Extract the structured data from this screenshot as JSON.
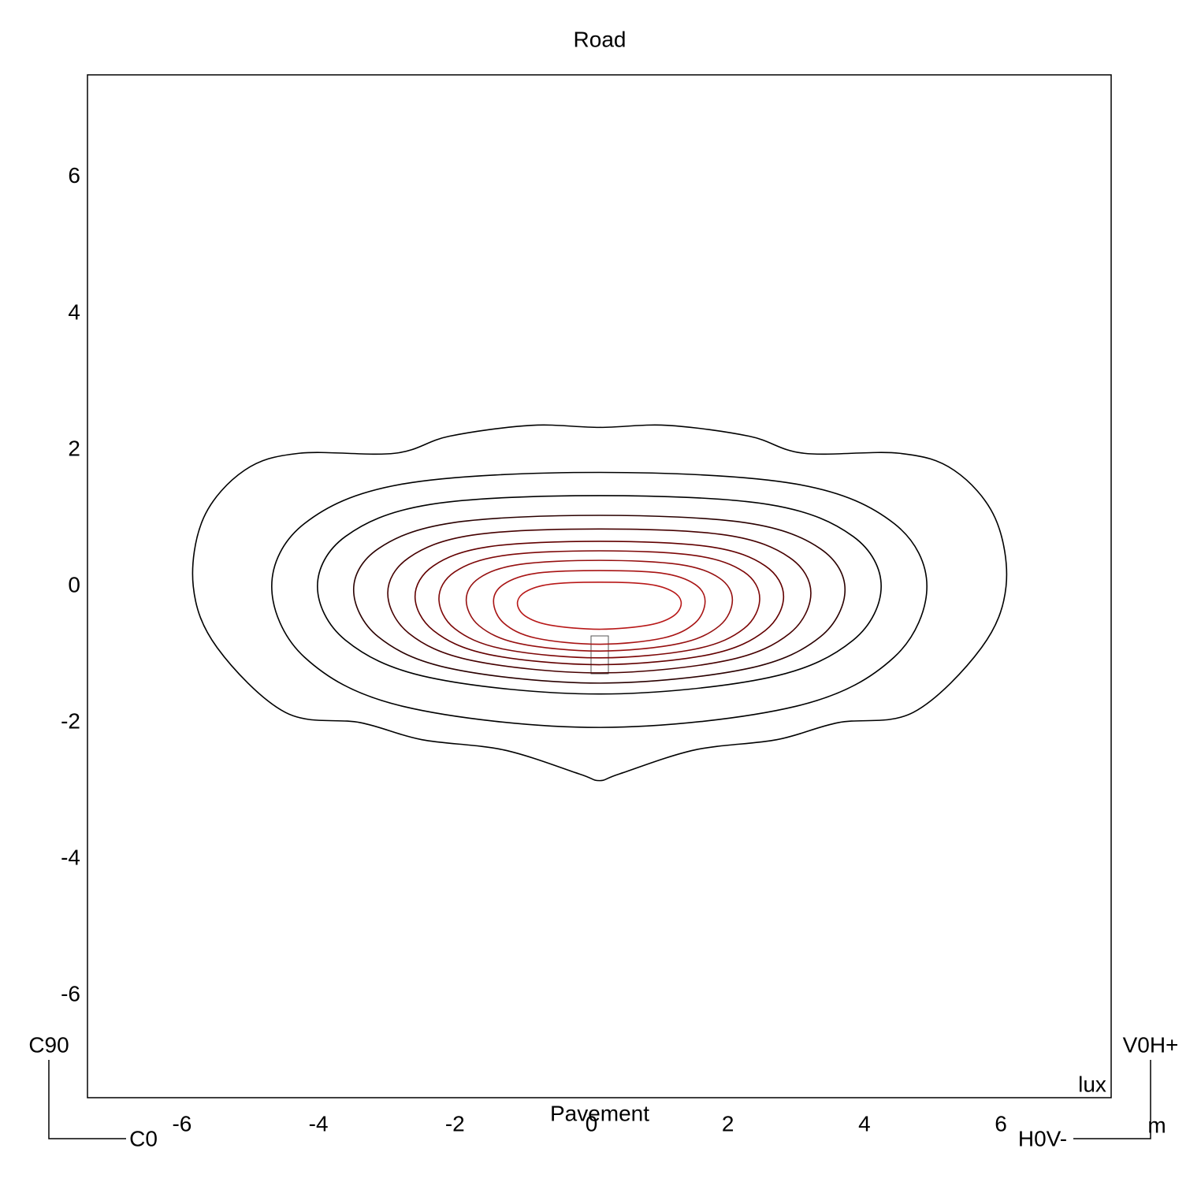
{
  "chart_data": {
    "type": "contour",
    "title": "Road",
    "annotations": [
      "Pavement",
      "lux",
      "m",
      "C90",
      "C0",
      "V0H+",
      "H0V-"
    ],
    "xlim": [
      -7.5,
      7.5
    ],
    "ylim": [
      -7.5,
      7.5
    ],
    "xticks": [
      -6,
      -4,
      -2,
      0,
      2,
      4,
      6
    ],
    "yticks": [
      -6,
      -4,
      -2,
      0,
      2,
      4,
      6
    ],
    "grid": false,
    "series": [
      {
        "color": "#000000",
        "x": [
          -5.95,
          -5.8,
          -5.2,
          -4.4,
          -3.0,
          -2.2,
          -1.0,
          0,
          1.0,
          2.2,
          3.0,
          4.4,
          5.2,
          5.8,
          5.96,
          5.6,
          4.6,
          3.5,
          2.6,
          1.4,
          0.3,
          0,
          -0.3,
          -1.4,
          -2.6,
          -3.5,
          -4.6,
          -5.6
        ],
        "values": [
          0,
          1.0,
          1.7,
          1.95,
          1.95,
          2.2,
          2.36,
          2.33,
          2.36,
          2.2,
          1.95,
          1.95,
          1.7,
          1.0,
          0,
          -0.9,
          -1.85,
          -2.0,
          -2.25,
          -2.4,
          -2.75,
          -2.85,
          -2.75,
          -2.4,
          -2.25,
          -2.0,
          -1.85,
          -0.9
        ]
      },
      {
        "color": "#000000",
        "x": [
          -4.8,
          -4.32,
          -2.88,
          0,
          2.88,
          4.32,
          4.8,
          4.32,
          2.88,
          0,
          -2.88,
          -4.32
        ],
        "values": [
          0,
          0.92,
          1.5,
          1.67,
          1.5,
          0.92,
          0,
          -1.04,
          -1.76,
          -2.07,
          -1.76,
          -1.04
        ]
      },
      {
        "color": "#000000",
        "x": [
          -4.13,
          -3.72,
          -2.48,
          0,
          2.48,
          3.72,
          4.13,
          3.72,
          2.48,
          0,
          -2.48,
          -3.72
        ],
        "values": [
          0,
          0.73,
          1.2,
          1.33,
          1.2,
          0.73,
          0,
          -0.79,
          -1.34,
          -1.58,
          -1.34,
          -0.79
        ]
      },
      {
        "color": "#2a0000",
        "x": [
          -3.6,
          -3.24,
          -2.16,
          0,
          2.16,
          3.24,
          3.6,
          3.24,
          2.16,
          0,
          -2.16,
          -3.24
        ],
        "values": [
          -0.05,
          0.55,
          0.93,
          1.04,
          0.93,
          0.55,
          -0.05,
          -0.74,
          -1.21,
          -1.42,
          -1.21,
          -0.74
        ]
      },
      {
        "color": "#460000",
        "x": [
          -3.1,
          -2.79,
          -1.86,
          0,
          1.86,
          2.79,
          3.1,
          2.79,
          1.86,
          0,
          -1.86,
          -2.79
        ],
        "values": [
          -0.1,
          0.42,
          0.75,
          0.84,
          0.75,
          0.42,
          -0.1,
          -0.69,
          -1.09,
          -1.27,
          -1.09,
          -0.69
        ]
      },
      {
        "color": "#620000",
        "x": [
          -2.7,
          -2.43,
          -1.62,
          0,
          1.62,
          2.43,
          2.7,
          2.43,
          1.62,
          0,
          -1.62,
          -2.43
        ],
        "values": [
          -0.15,
          0.3,
          0.58,
          0.66,
          0.58,
          0.3,
          -0.15,
          -0.65,
          -1.0,
          -1.15,
          -1.0,
          -0.65
        ]
      },
      {
        "color": "#7e0808",
        "x": [
          -2.35,
          -2.12,
          -1.41,
          0,
          1.41,
          2.12,
          2.35,
          2.12,
          1.41,
          0,
          -1.41,
          -2.12
        ],
        "values": [
          -0.18,
          0.21,
          0.45,
          0.52,
          0.45,
          0.21,
          -0.18,
          -0.62,
          -0.92,
          -1.05,
          -0.92,
          -0.62
        ]
      },
      {
        "color": "#961010",
        "x": [
          -1.95,
          -1.76,
          -1.17,
          0,
          1.17,
          1.76,
          1.95,
          1.76,
          1.17,
          0,
          -1.17,
          -1.76
        ],
        "values": [
          -0.2,
          0.12,
          0.32,
          0.38,
          0.32,
          0.12,
          -0.2,
          -0.58,
          -0.84,
          -0.95,
          -0.84,
          -0.58
        ]
      },
      {
        "color": "#a81414",
        "x": [
          -1.55,
          -1.4,
          -0.93,
          0,
          0.93,
          1.4,
          1.55,
          1.4,
          0.93,
          0,
          -0.93,
          -1.4
        ],
        "values": [
          -0.22,
          0.03,
          0.19,
          0.23,
          0.19,
          0.03,
          -0.22,
          -0.54,
          -0.76,
          -0.85,
          -0.76,
          -0.54
        ]
      },
      {
        "color": "#b81818",
        "x": [
          -1.2,
          -1.08,
          -0.72,
          0,
          0.72,
          1.08,
          1.2,
          1.08,
          0.72,
          0,
          -0.72,
          -1.08
        ],
        "values": [
          -0.25,
          -0.08,
          0.03,
          0.06,
          0.03,
          -0.08,
          -0.25,
          -0.44,
          -0.57,
          -0.63,
          -0.57,
          -0.44
        ]
      }
    ]
  }
}
